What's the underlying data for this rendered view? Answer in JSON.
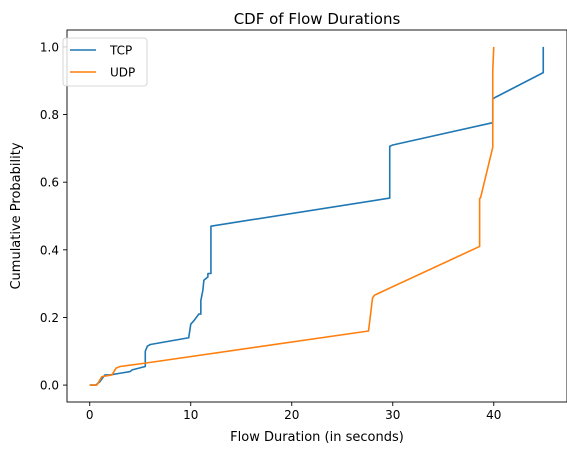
{
  "chart_data": {
    "type": "line",
    "title": "CDF of Flow Durations",
    "xlabel": "Flow Duration (in seconds)",
    "ylabel": "Cumulative Probability",
    "xlim": [
      -2.25,
      47.25
    ],
    "ylim": [
      -0.05,
      1.05
    ],
    "xticks": [
      0,
      10,
      20,
      30,
      40
    ],
    "yticks": [
      0.0,
      0.2,
      0.4,
      0.6,
      0.8,
      1.0
    ],
    "xtick_labels": [
      "0",
      "10",
      "20",
      "30",
      "40"
    ],
    "ytick_labels": [
      "0.0",
      "0.2",
      "0.4",
      "0.6",
      "0.8",
      "1.0"
    ],
    "grid": false,
    "legend_position": "upper-left",
    "series": [
      {
        "name": "TCP",
        "color": "#1f77b4",
        "x": [
          0.0,
          0.6,
          1.0,
          1.5,
          2.0,
          3.0,
          4.0,
          4.2,
          5.5,
          5.5,
          5.7,
          6.0,
          9.8,
          10.0,
          10.3,
          10.8,
          11.0,
          11.0,
          11.2,
          11.3,
          11.7,
          11.7,
          12.0,
          12.0,
          29.7,
          29.7,
          30.0,
          39.9,
          39.9,
          40.1,
          44.9,
          44.9
        ],
        "y": [
          0.0,
          0.0,
          0.01,
          0.03,
          0.03,
          0.035,
          0.04,
          0.045,
          0.055,
          0.1,
          0.115,
          0.12,
          0.14,
          0.18,
          0.19,
          0.21,
          0.21,
          0.25,
          0.28,
          0.31,
          0.32,
          0.33,
          0.33,
          0.47,
          0.553,
          0.706,
          0.71,
          0.776,
          0.846,
          0.85,
          0.924,
          1.0
        ]
      },
      {
        "name": "UDP",
        "color": "#ff7f0e",
        "x": [
          0.0,
          0.7,
          1.2,
          2.2,
          2.6,
          3.0,
          5.5,
          27.6,
          28.0,
          28.2,
          38.6,
          38.6,
          38.7,
          39.9,
          39.9,
          40.0
        ],
        "y": [
          0.0,
          0.0,
          0.025,
          0.03,
          0.05,
          0.055,
          0.065,
          0.16,
          0.258,
          0.266,
          0.41,
          0.551,
          0.555,
          0.703,
          0.93,
          1.0
        ]
      }
    ]
  }
}
